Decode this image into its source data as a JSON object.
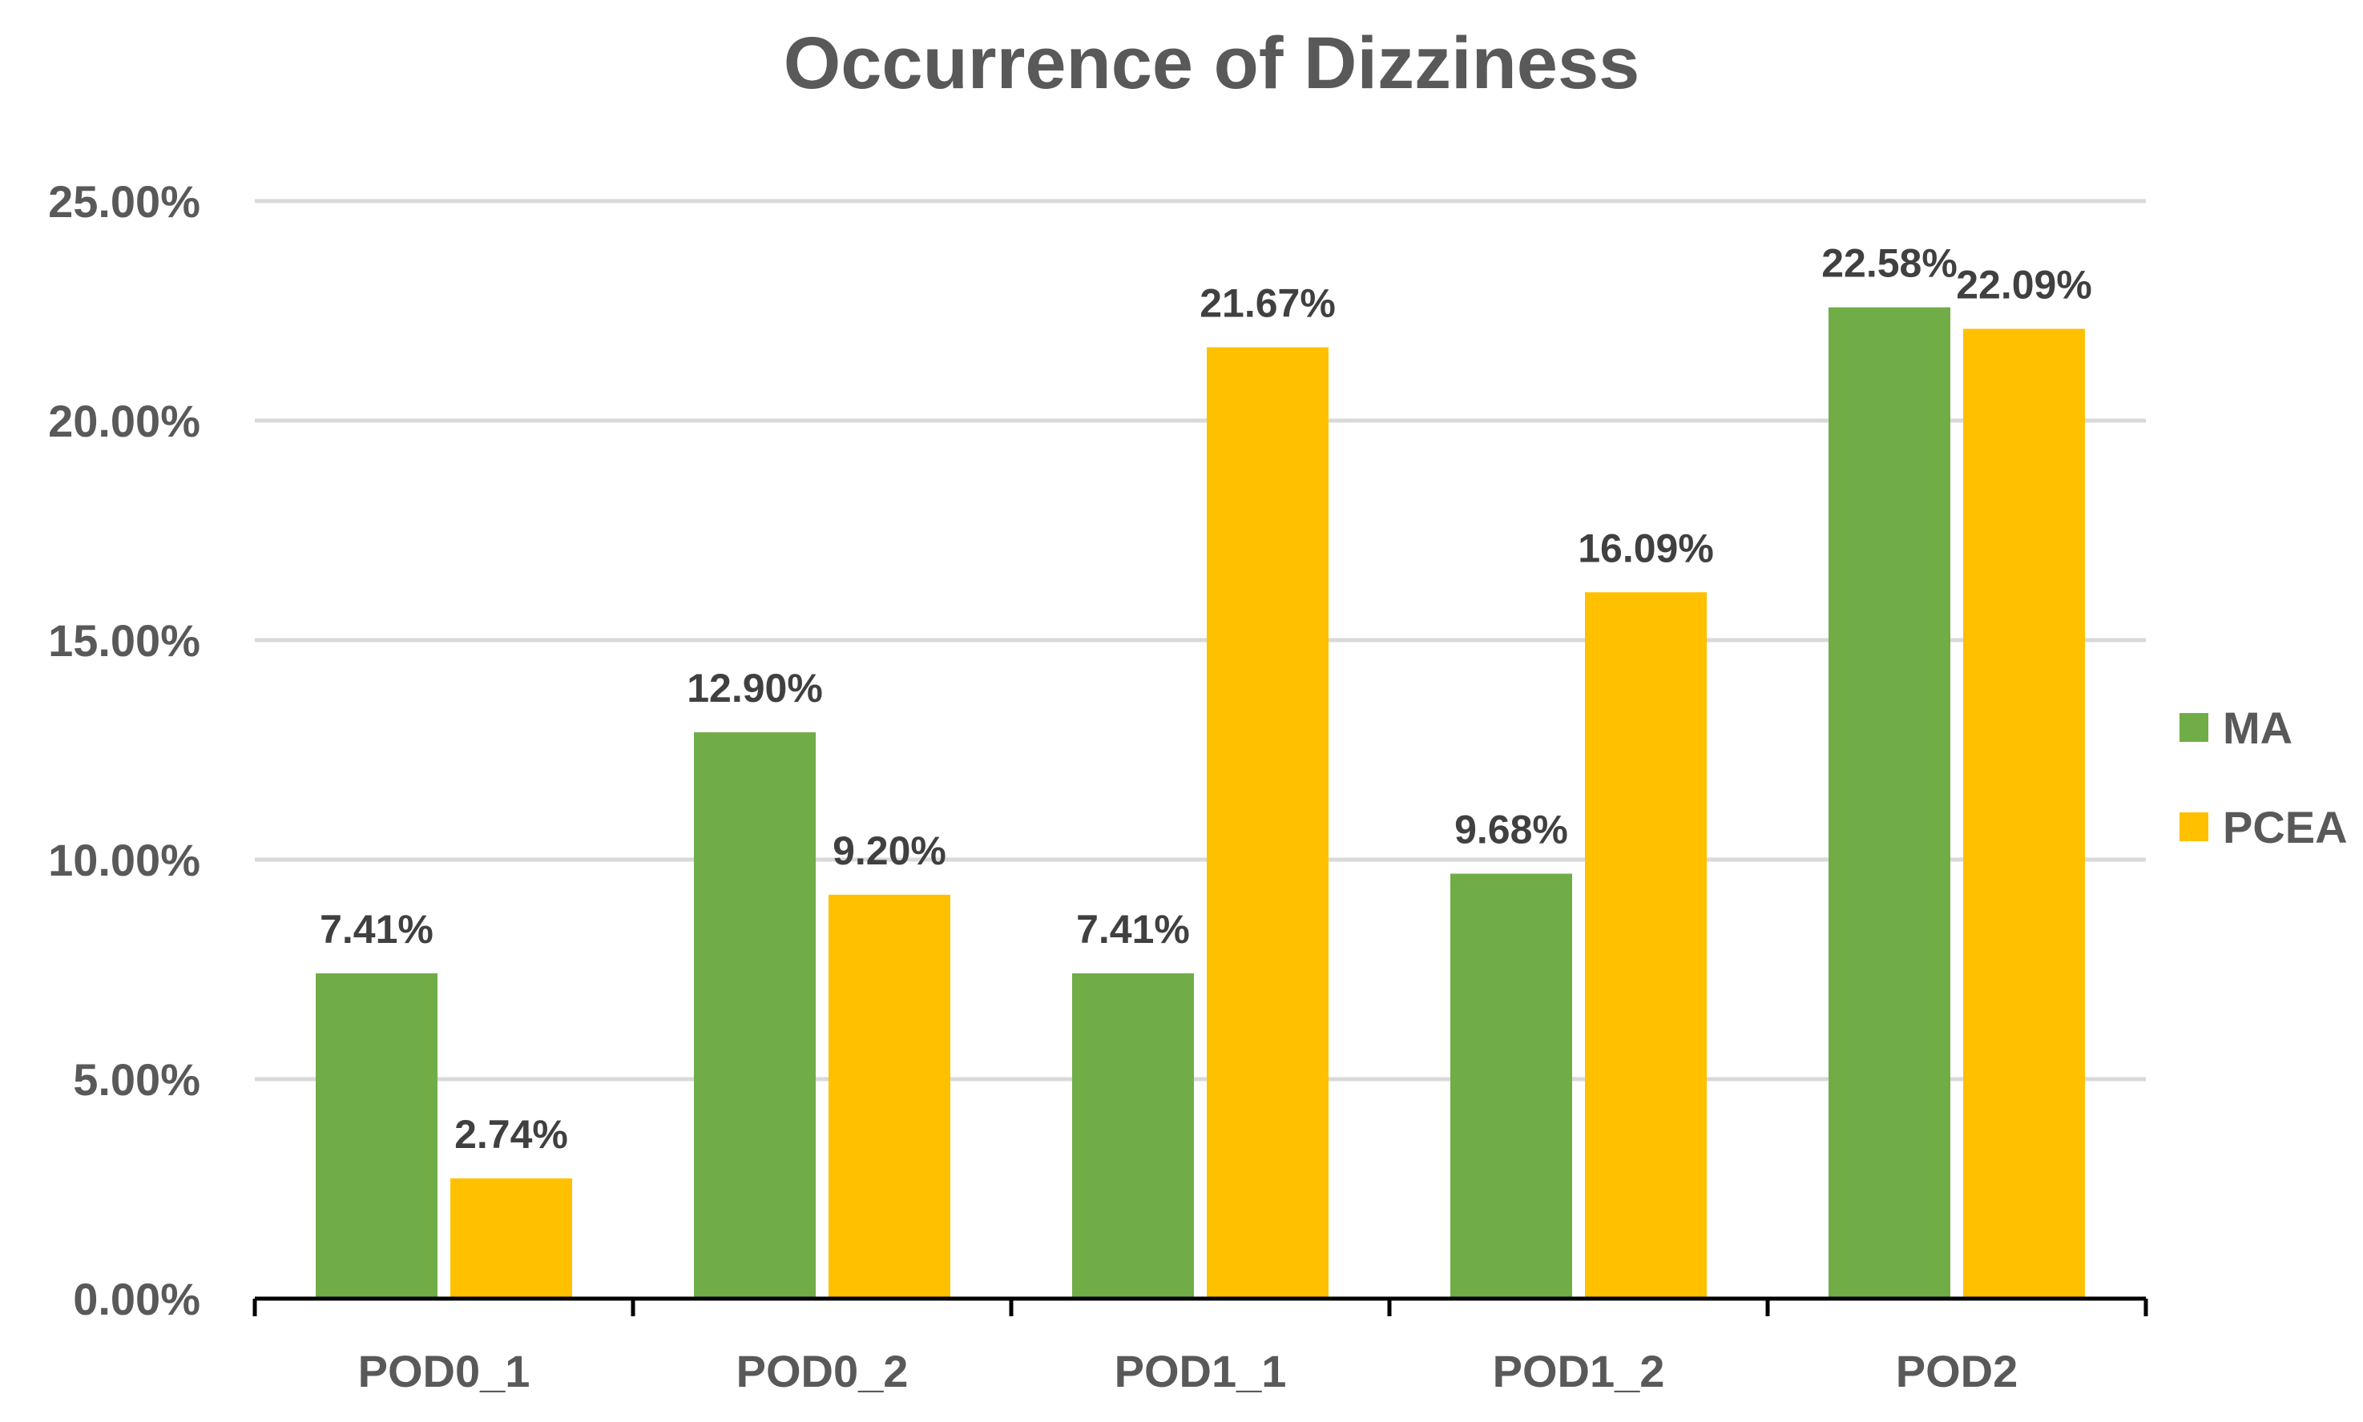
{
  "chart_data": {
    "type": "bar",
    "title": "Occurrence of Dizziness",
    "categories": [
      "POD0_1",
      "POD0_2",
      "POD1_1",
      "POD1_2",
      "POD2"
    ],
    "series": [
      {
        "name": "MA",
        "color": "#70ad47",
        "values": [
          7.41,
          12.9,
          7.41,
          9.68,
          22.58
        ],
        "labels": [
          "7.41%",
          "12.90%",
          "7.41%",
          "9.68%",
          "22.58%"
        ]
      },
      {
        "name": "PCEA",
        "color": "#ffc000",
        "values": [
          2.74,
          9.2,
          21.67,
          16.09,
          22.09
        ],
        "labels": [
          "2.74%",
          "9.20%",
          "21.67%",
          "16.09%",
          "22.09%"
        ]
      }
    ],
    "y_ticks": [
      "0.00%",
      "5.00%",
      "10.00%",
      "15.00%",
      "20.00%",
      "25.00%"
    ],
    "ylim": [
      0,
      25
    ],
    "xlabel": "",
    "ylabel": "",
    "grid": true,
    "legend_position": "right"
  }
}
